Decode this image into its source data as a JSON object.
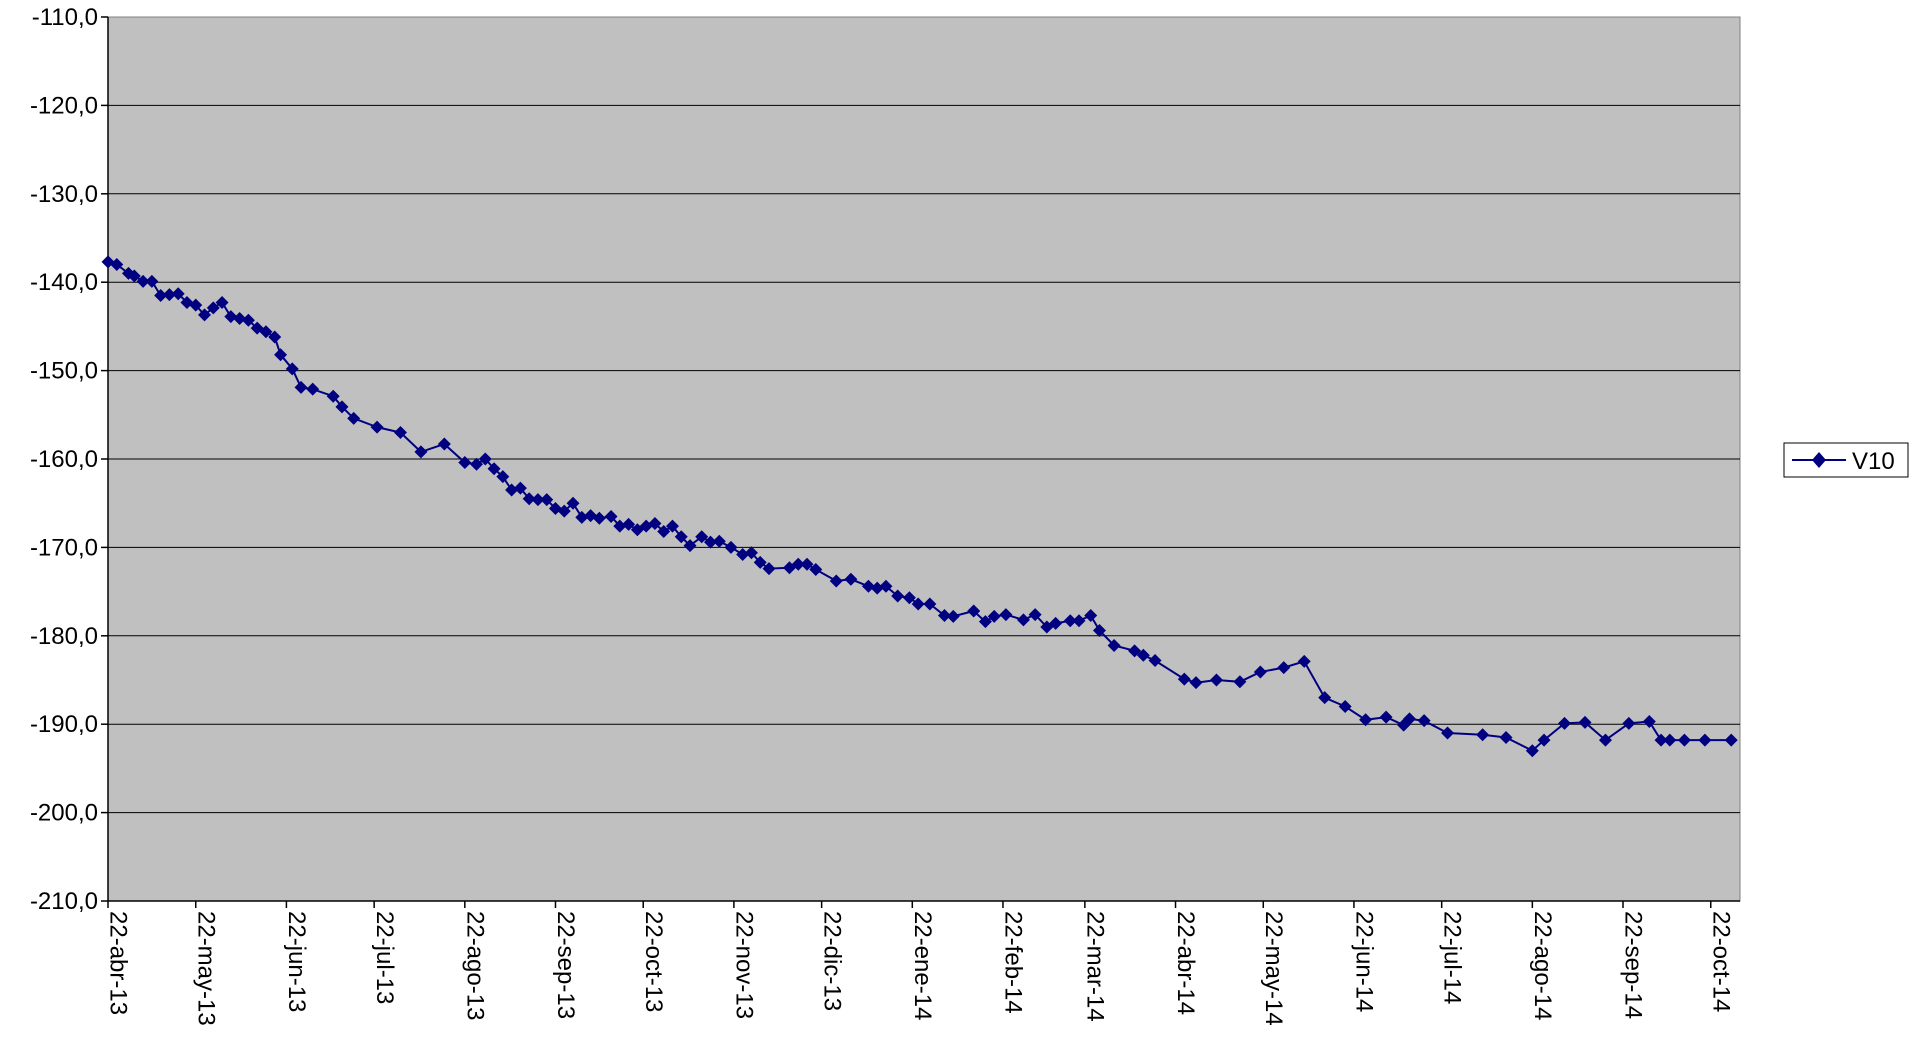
{
  "chart_data": {
    "type": "line",
    "title": "",
    "xlabel": "",
    "ylabel": "",
    "ylim": [
      -210,
      -110
    ],
    "yticks": [
      -110,
      -120,
      -130,
      -140,
      -150,
      -160,
      -170,
      -180,
      -190,
      -200,
      -210
    ],
    "ytick_labels": [
      "-110,0",
      "-120,0",
      "-130,0",
      "-140,0",
      "-150,0",
      "-160,0",
      "-170,0",
      "-180,0",
      "-190,0",
      "-200,0",
      "-210,0"
    ],
    "xlim": [
      "2013-04-22",
      "2014-11-01"
    ],
    "xtick_dates": [
      "2013-04-22",
      "2013-05-22",
      "2013-06-22",
      "2013-07-22",
      "2013-08-22",
      "2013-09-22",
      "2013-10-22",
      "2013-11-22",
      "2013-12-22",
      "2014-01-22",
      "2014-02-22",
      "2014-03-22",
      "2014-04-22",
      "2014-05-22",
      "2014-06-22",
      "2014-07-22",
      "2014-08-22",
      "2014-09-22",
      "2014-10-22"
    ],
    "xtick_labels": [
      "22-abr-13",
      "22-may-13",
      "22-jun-13",
      "22-jul-13",
      "22-ago-13",
      "22-sep-13",
      "22-oct-13",
      "22-nov-13",
      "22-dic-13",
      "22-ene-14",
      "22-feb-14",
      "22-mar-14",
      "22-abr-14",
      "22-may-14",
      "22-jun-14",
      "22-jul-14",
      "22-ago-14",
      "22-sep-14",
      "22-oct-14"
    ],
    "grid": "horizontal",
    "legend_position": "right",
    "colors": {
      "plot_background": "#c0c0c0",
      "series": "#000080",
      "gridline": "#000000"
    },
    "series": [
      {
        "name": "V10",
        "marker": "diamond",
        "x": [
          "2013-04-22",
          "2013-04-25",
          "2013-04-29",
          "2013-05-01",
          "2013-05-04",
          "2013-05-07",
          "2013-05-10",
          "2013-05-13",
          "2013-05-16",
          "2013-05-19",
          "2013-05-22",
          "2013-05-25",
          "2013-05-28",
          "2013-05-31",
          "2013-06-03",
          "2013-06-06",
          "2013-06-09",
          "2013-06-12",
          "2013-06-15",
          "2013-06-18",
          "2013-06-20",
          "2013-06-24",
          "2013-06-27",
          "2013-07-01",
          "2013-07-08",
          "2013-07-11",
          "2013-07-15",
          "2013-07-23",
          "2013-07-31",
          "2013-08-07",
          "2013-08-15",
          "2013-08-22",
          "2013-08-26",
          "2013-08-29",
          "2013-09-01",
          "2013-09-04",
          "2013-09-07",
          "2013-09-10",
          "2013-09-13",
          "2013-09-16",
          "2013-09-19",
          "2013-09-22",
          "2013-09-25",
          "2013-09-28",
          "2013-10-01",
          "2013-10-04",
          "2013-10-07",
          "2013-10-11",
          "2013-10-14",
          "2013-10-17",
          "2013-10-20",
          "2013-10-23",
          "2013-10-26",
          "2013-10-29",
          "2013-11-01",
          "2013-11-04",
          "2013-11-07",
          "2013-11-11",
          "2013-11-14",
          "2013-11-17",
          "2013-11-21",
          "2013-11-25",
          "2013-11-28",
          "2013-12-01",
          "2013-12-04",
          "2013-12-11",
          "2013-12-14",
          "2013-12-17",
          "2013-12-20",
          "2013-12-27",
          "2014-01-01",
          "2014-01-07",
          "2014-01-10",
          "2014-01-13",
          "2014-01-17",
          "2014-01-21",
          "2014-01-24",
          "2014-01-28",
          "2014-02-02",
          "2014-02-05",
          "2014-02-12",
          "2014-02-16",
          "2014-02-19",
          "2014-02-23",
          "2014-03-01",
          "2014-03-05",
          "2014-03-09",
          "2014-03-12",
          "2014-03-17",
          "2014-03-20",
          "2014-03-24",
          "2014-03-27",
          "2014-04-01",
          "2014-04-08",
          "2014-04-11",
          "2014-04-15",
          "2014-04-25",
          "2014-04-29",
          "2014-05-06",
          "2014-05-14",
          "2014-05-21",
          "2014-05-29",
          "2014-06-05",
          "2014-06-12",
          "2014-06-19",
          "2014-06-26",
          "2014-07-03",
          "2014-07-09",
          "2014-07-11",
          "2014-07-16",
          "2014-07-24",
          "2014-08-05",
          "2014-08-13",
          "2014-08-22",
          "2014-08-26",
          "2014-09-02",
          "2014-09-09",
          "2014-09-16",
          "2014-09-24",
          "2014-10-01",
          "2014-10-05",
          "2014-10-08",
          "2014-10-13",
          "2014-10-20",
          "2014-10-29"
        ],
        "y": [
          -137.7,
          -138.0,
          -139.0,
          -139.3,
          -139.9,
          -139.9,
          -141.5,
          -141.4,
          -141.3,
          -142.3,
          -142.6,
          -143.7,
          -142.9,
          -142.3,
          -143.9,
          -144.1,
          -144.3,
          -145.2,
          -145.6,
          -146.2,
          -148.2,
          -149.8,
          -151.9,
          -152.1,
          -152.9,
          -154.1,
          -155.4,
          -156.4,
          -157.0,
          -159.2,
          -158.3,
          -160.4,
          -160.6,
          -160.0,
          -161.1,
          -162.0,
          -163.5,
          -163.3,
          -164.5,
          -164.6,
          -164.6,
          -165.6,
          -165.9,
          -165.0,
          -166.6,
          -166.4,
          -166.7,
          -166.5,
          -167.6,
          -167.4,
          -168.0,
          -167.6,
          -167.3,
          -168.2,
          -167.6,
          -168.8,
          -169.8,
          -168.8,
          -169.4,
          -169.3,
          -170.0,
          -170.8,
          -170.6,
          -171.7,
          -172.4,
          -172.3,
          -171.9,
          -171.9,
          -172.5,
          -173.8,
          -173.6,
          -174.4,
          -174.6,
          -174.4,
          -175.5,
          -175.7,
          -176.4,
          -176.4,
          -177.7,
          -177.8,
          -177.2,
          -178.4,
          -177.8,
          -177.6,
          -178.2,
          -177.6,
          -179.0,
          -178.6,
          -178.3,
          -178.3,
          -177.7,
          -179.4,
          -181.1,
          -181.7,
          -182.2,
          -182.8,
          -184.9,
          -185.3,
          -185.0,
          -185.2,
          -184.1,
          -183.6,
          -182.9,
          -187.0,
          -188.0,
          -189.5,
          -189.2,
          -190.1,
          -189.4,
          -189.6,
          -191.0,
          -191.2,
          -191.5,
          -193.0,
          -191.8,
          -189.9,
          -189.8,
          -191.8,
          -189.9,
          -189.7,
          -191.8,
          -191.8,
          -191.8,
          -191.8,
          -191.8
        ],
        "x_note": "",
        "y_note": ""
      }
    ]
  }
}
